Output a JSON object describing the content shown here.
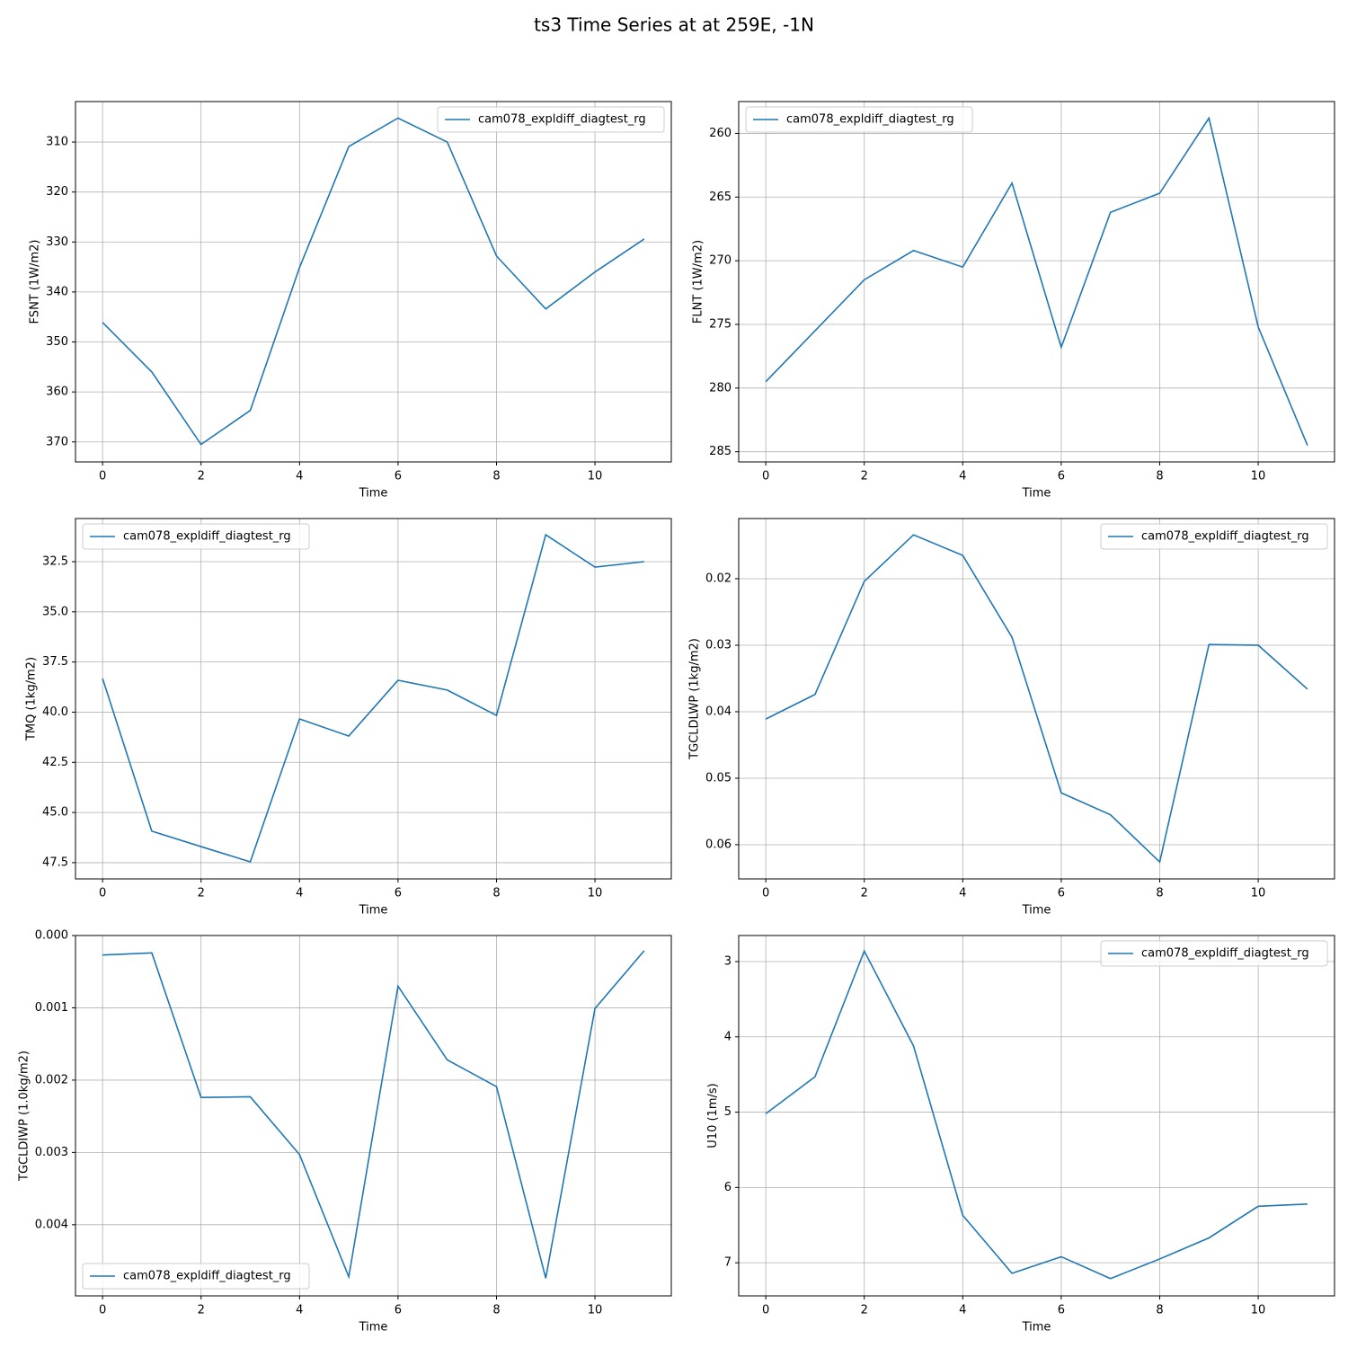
{
  "title": "ts3 Time Series at at 259E, -1N",
  "chart_data": [
    {
      "type": "line",
      "ylabel": "FSNT (1W/m2)",
      "xlabel": "Time",
      "grid": true,
      "legend": "upper right",
      "x": [
        0,
        1,
        2,
        3,
        4,
        5,
        6,
        7,
        8,
        9,
        10,
        11
      ],
      "xlim": [
        -0.55,
        11.55
      ],
      "xticks": [
        0,
        2,
        4,
        6,
        8,
        10
      ],
      "ylim": [
        374.0,
        301.9
      ],
      "yticks": [
        310,
        320,
        330,
        340,
        350,
        360,
        370
      ],
      "series": [
        {
          "name": "cam078_expldiff_diagtest_rg",
          "color": "#1f77b4",
          "values": [
            346.1,
            356.0,
            370.5,
            363.7,
            335.1,
            310.9,
            305.2,
            310.0,
            332.8,
            343.4,
            336.0,
            329.4
          ]
        }
      ]
    },
    {
      "type": "line",
      "ylabel": "FLNT (1W/m2)",
      "xlabel": "Time",
      "grid": true,
      "legend": "upper left",
      "x": [
        0,
        1,
        2,
        3,
        4,
        5,
        6,
        7,
        8,
        9,
        10,
        11
      ],
      "xlim": [
        -0.55,
        11.55
      ],
      "xticks": [
        0,
        2,
        4,
        6,
        8,
        10
      ],
      "ylim": [
        285.8,
        257.5
      ],
      "yticks": [
        260,
        265,
        270,
        275,
        280,
        285
      ],
      "series": [
        {
          "name": "cam078_expldiff_diagtest_rg",
          "color": "#1f77b4",
          "values": [
            279.5,
            275.5,
            271.5,
            269.2,
            270.5,
            263.9,
            276.8,
            266.2,
            264.7,
            258.8,
            275.2,
            284.5
          ]
        }
      ]
    },
    {
      "type": "line",
      "ylabel": "TMQ (1kg/m2)",
      "xlabel": "Time",
      "grid": true,
      "legend": "upper left",
      "x": [
        0,
        1,
        2,
        3,
        4,
        5,
        6,
        7,
        8,
        9,
        10,
        11
      ],
      "xlim": [
        -0.55,
        11.55
      ],
      "xticks": [
        0,
        2,
        4,
        6,
        8,
        10
      ],
      "ylim": [
        48.31,
        30.35
      ],
      "yticks": [
        32.5,
        {
          "value": 35,
          "label": "35.0"
        },
        37.5,
        {
          "value": 40,
          "label": "40.0"
        },
        42.5,
        {
          "value": 45,
          "label": "45.0"
        },
        47.5
      ],
      "series": [
        {
          "name": "cam078_expldiff_diagtest_rg",
          "color": "#1f77b4",
          "values": [
            38.32,
            45.93,
            46.7,
            47.46,
            40.34,
            41.19,
            38.41,
            38.9,
            40.16,
            31.16,
            32.77,
            32.5
          ]
        }
      ]
    },
    {
      "type": "line",
      "ylabel": "TGCLDLWP (1kg/m2)",
      "xlabel": "Time",
      "grid": true,
      "legend": "upper right",
      "x": [
        0,
        1,
        2,
        3,
        4,
        5,
        6,
        7,
        8,
        9,
        10,
        11
      ],
      "xlim": [
        -0.55,
        11.55
      ],
      "xticks": [
        0,
        2,
        4,
        6,
        8,
        10
      ],
      "ylim": [
        0.06514,
        0.01095
      ],
      "yticks": [
        0.02,
        0.03,
        0.04,
        0.05,
        0.06
      ],
      "series": [
        {
          "name": "cam078_expldiff_diagtest_rg",
          "color": "#1f77b4",
          "values": [
            0.0411,
            0.0374,
            0.0204,
            0.0134,
            0.0165,
            0.0288,
            0.0522,
            0.0555,
            0.0626,
            0.0299,
            0.03,
            0.0366
          ]
        }
      ]
    },
    {
      "type": "line",
      "ylabel": "TGCLDIWP (1.0kg/m2)",
      "xlabel": "Time",
      "grid": true,
      "legend": "lower left",
      "x": [
        0,
        1,
        2,
        3,
        4,
        5,
        6,
        7,
        8,
        9,
        10,
        11
      ],
      "xlim": [
        -0.55,
        11.55
      ],
      "xticks": [
        0,
        2,
        4,
        6,
        8,
        10
      ],
      "ylim": [
        0.004984,
        0
      ],
      "yticks": [
        {
          "value": 0,
          "label": "0.000"
        },
        0.001,
        0.002,
        0.003,
        0.004
      ],
      "series": [
        {
          "name": "cam078_expldiff_diagtest_rg",
          "color": "#1f77b4",
          "values": [
            0.00027,
            0.00024,
            0.00224,
            0.00223,
            0.00303,
            0.00472,
            0.0007,
            0.00172,
            0.00209,
            0.00474,
            0.00101,
            0.00021
          ]
        }
      ]
    },
    {
      "type": "line",
      "ylabel": "U10 (1m/s)",
      "xlabel": "Time",
      "grid": true,
      "legend": "upper right",
      "x": [
        0,
        1,
        2,
        3,
        4,
        5,
        6,
        7,
        8,
        9,
        10,
        11
      ],
      "xlim": [
        -0.55,
        11.55
      ],
      "xticks": [
        0,
        2,
        4,
        6,
        8,
        10
      ],
      "ylim": [
        7.44,
        2.654
      ],
      "yticks": [
        3,
        4,
        5,
        6,
        7
      ],
      "series": [
        {
          "name": "cam078_expldiff_diagtest_rg",
          "color": "#1f77b4",
          "values": [
            5.02,
            4.53,
            2.86,
            4.12,
            6.37,
            7.14,
            6.92,
            7.21,
            6.95,
            6.67,
            6.25,
            6.22
          ]
        }
      ]
    }
  ]
}
